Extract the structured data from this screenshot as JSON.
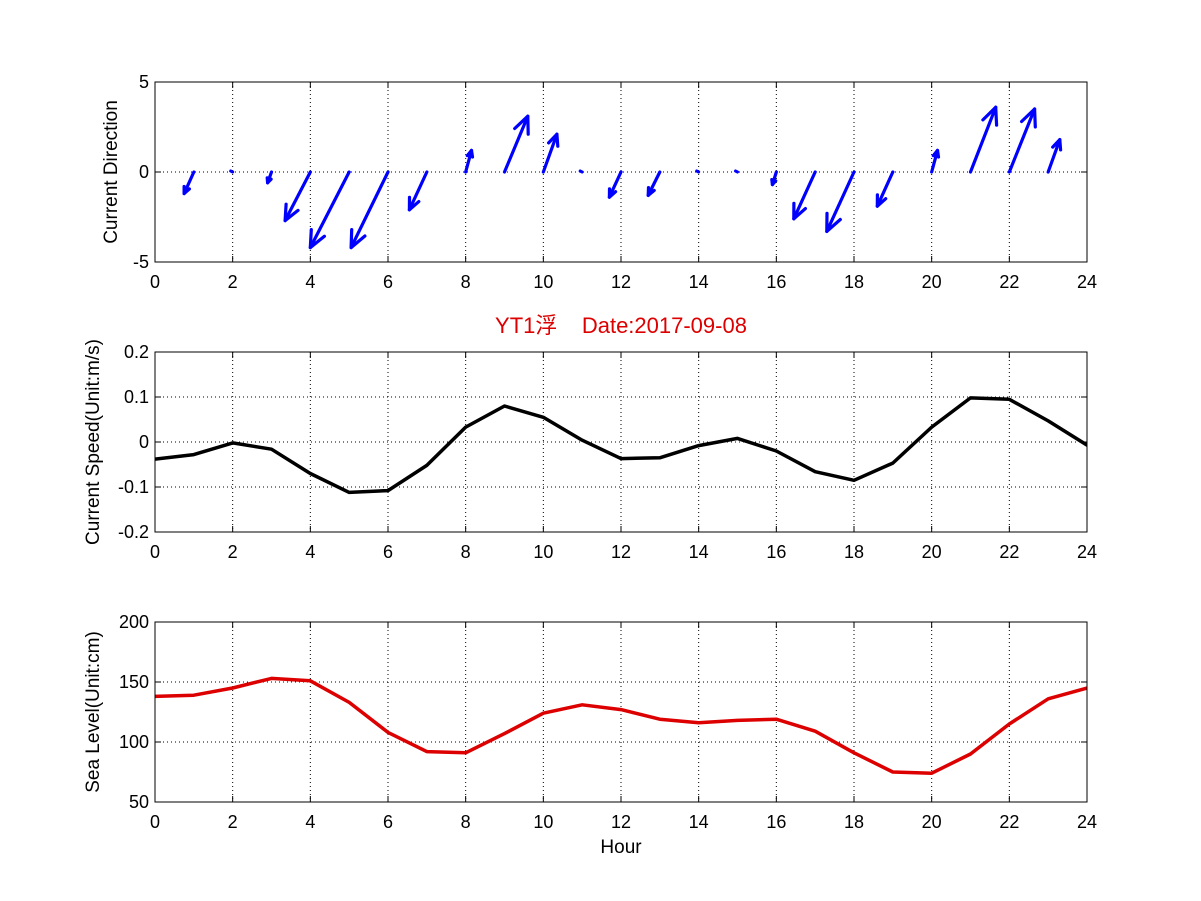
{
  "chart_data": [
    {
      "type": "quiver",
      "ylabel": "Current Direction",
      "xlim": [
        0,
        24
      ],
      "ylim": [
        -5,
        5
      ],
      "xticks": [
        0,
        2,
        4,
        6,
        8,
        10,
        12,
        14,
        16,
        18,
        20,
        22,
        24
      ],
      "yticks": [
        -5,
        0,
        5
      ],
      "grid": true,
      "arrow_color": "#0000ff",
      "vectors": [
        {
          "x": 1,
          "u": -0.25,
          "v": -1.2
        },
        {
          "x": 2,
          "u": 0.0,
          "v": 0.0
        },
        {
          "x": 3,
          "u": -0.1,
          "v": -0.6
        },
        {
          "x": 4,
          "u": -0.65,
          "v": -2.7
        },
        {
          "x": 5,
          "u": -1.0,
          "v": -4.2
        },
        {
          "x": 6,
          "u": -0.95,
          "v": -4.2
        },
        {
          "x": 7,
          "u": -0.45,
          "v": -2.1
        },
        {
          "x": 8,
          "u": 0.15,
          "v": 1.2
        },
        {
          "x": 9,
          "u": 0.6,
          "v": 3.1
        },
        {
          "x": 10,
          "u": 0.35,
          "v": 2.1
        },
        {
          "x": 11,
          "u": 0.0,
          "v": 0.0
        },
        {
          "x": 12,
          "u": -0.3,
          "v": -1.4
        },
        {
          "x": 13,
          "u": -0.3,
          "v": -1.3
        },
        {
          "x": 14,
          "u": 0.0,
          "v": 0.0
        },
        {
          "x": 15,
          "u": 0.0,
          "v": 0.0
        },
        {
          "x": 16,
          "u": -0.1,
          "v": -0.7
        },
        {
          "x": 17,
          "u": -0.55,
          "v": -2.6
        },
        {
          "x": 18,
          "u": -0.7,
          "v": -3.3
        },
        {
          "x": 19,
          "u": -0.4,
          "v": -1.9
        },
        {
          "x": 20,
          "u": 0.15,
          "v": 1.2
        },
        {
          "x": 21,
          "u": 0.65,
          "v": 3.6
        },
        {
          "x": 22,
          "u": 0.65,
          "v": 3.5
        },
        {
          "x": 23,
          "u": 0.3,
          "v": 1.8
        }
      ]
    },
    {
      "type": "line",
      "title": "YT1浮    Date:2017-09-08",
      "title_color": "#dd0000",
      "ylabel": "Current Speed(Unit:m/s)",
      "xlim": [
        0,
        24
      ],
      "ylim": [
        -0.2,
        0.2
      ],
      "xticks": [
        0,
        2,
        4,
        6,
        8,
        10,
        12,
        14,
        16,
        18,
        20,
        22,
        24
      ],
      "yticks": [
        -0.2,
        -0.1,
        0,
        0.1,
        0.2
      ],
      "grid": true,
      "line_color": "#000000",
      "x": [
        0,
        1,
        2,
        3,
        4,
        5,
        6,
        7,
        8,
        9,
        10,
        11,
        12,
        13,
        14,
        15,
        16,
        17,
        18,
        19,
        20,
        21,
        22,
        23,
        24
      ],
      "y": [
        -0.038,
        -0.028,
        -0.002,
        -0.016,
        -0.07,
        -0.112,
        -0.108,
        -0.052,
        0.033,
        0.08,
        0.055,
        0.004,
        -0.037,
        -0.035,
        -0.008,
        0.008,
        -0.02,
        -0.066,
        -0.085,
        -0.047,
        0.033,
        0.098,
        0.095,
        0.047,
        -0.007
      ]
    },
    {
      "type": "line",
      "xlabel": "Hour",
      "ylabel": "Sea Level(Unit:cm)",
      "xlim": [
        0,
        24
      ],
      "ylim": [
        50,
        200
      ],
      "xticks": [
        0,
        2,
        4,
        6,
        8,
        10,
        12,
        14,
        16,
        18,
        20,
        22,
        24
      ],
      "yticks": [
        50,
        100,
        150,
        200
      ],
      "grid": true,
      "line_color": "#dd0000",
      "x": [
        0,
        1,
        2,
        3,
        4,
        5,
        6,
        7,
        8,
        9,
        10,
        11,
        12,
        13,
        14,
        15,
        16,
        17,
        18,
        19,
        20,
        21,
        22,
        23,
        24
      ],
      "y": [
        138,
        139,
        145,
        153,
        151,
        133,
        108,
        92,
        91,
        107,
        124,
        131,
        127,
        119,
        116,
        118,
        119,
        109,
        91,
        75,
        74,
        90,
        115,
        136,
        145
      ]
    }
  ]
}
